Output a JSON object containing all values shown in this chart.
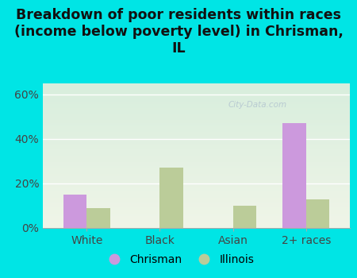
{
  "title": "Breakdown of poor residents within races\n(income below poverty level) in Chrisman,\nIL",
  "categories": [
    "White",
    "Black",
    "Asian",
    "2+ races"
  ],
  "chrisman_values": [
    15,
    0,
    0,
    47
  ],
  "illinois_values": [
    9,
    27,
    10,
    13
  ],
  "chrisman_color": "#cc99dd",
  "illinois_color": "#bbcc99",
  "background_color": "#00e5e5",
  "plot_bg_top": "#d8eedd",
  "plot_bg_bottom": "#f0f5e8",
  "yticks": [
    0,
    20,
    40,
    60
  ],
  "ylim": [
    0,
    65
  ],
  "bar_width": 0.32,
  "title_fontsize": 12.5,
  "tick_fontsize": 10,
  "legend_fontsize": 10,
  "watermark": "City-Data.com"
}
